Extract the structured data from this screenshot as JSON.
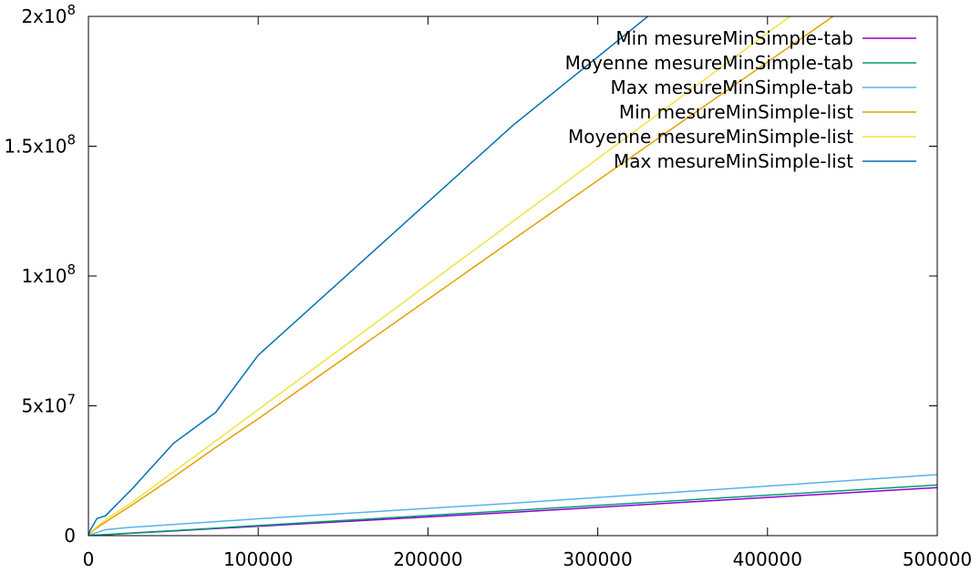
{
  "chart_data": {
    "type": "line",
    "title": "",
    "xlabel": "",
    "ylabel": "",
    "xlim": [
      0,
      500000
    ],
    "ylim": [
      0,
      200000000
    ],
    "grid": false,
    "legend_position": "top-right",
    "x_ticks": [
      {
        "value": 0,
        "label": "0"
      },
      {
        "value": 100000,
        "label": "100000"
      },
      {
        "value": 200000,
        "label": "200000"
      },
      {
        "value": 300000,
        "label": "300000"
      },
      {
        "value": 400000,
        "label": "400000"
      },
      {
        "value": 500000,
        "label": "500000"
      }
    ],
    "y_ticks": [
      {
        "value": 0,
        "base": "0",
        "exp": ""
      },
      {
        "value": 50000000,
        "base": "5x10",
        "exp": "7"
      },
      {
        "value": 100000000,
        "base": "1x10",
        "exp": "8"
      },
      {
        "value": 150000000,
        "base": "1.5x10",
        "exp": "8"
      },
      {
        "value": 200000000,
        "base": "2x10",
        "exp": "8"
      }
    ],
    "series": [
      {
        "name": "Min mesureMinSimple-tab",
        "color": "#9400d3",
        "x": [
          0,
          1000,
          5000,
          10000,
          25000,
          50000,
          75000,
          100000,
          250000,
          500000
        ],
        "y": [
          0,
          40000,
          180000,
          360000,
          900000,
          1800000,
          2700000,
          3600000,
          9000000,
          18500000
        ]
      },
      {
        "name": "Moyenne mesureMinSimple-tab",
        "color": "#009e73",
        "x": [
          0,
          1000,
          5000,
          10000,
          25000,
          50000,
          75000,
          100000,
          250000,
          500000
        ],
        "y": [
          0,
          45000,
          200000,
          400000,
          1000000,
          1950000,
          2900000,
          3900000,
          9700000,
          19500000
        ]
      },
      {
        "name": "Max mesureMinSimple-tab",
        "color": "#56b4e9",
        "x": [
          0,
          1000,
          5000,
          10000,
          25000,
          50000,
          75000,
          100000,
          250000,
          500000
        ],
        "y": [
          0,
          300000,
          1200000,
          2300000,
          3200000,
          4300000,
          5400000,
          6500000,
          12500000,
          23500000
        ]
      },
      {
        "name": "Min mesureMinSimple-list",
        "color": "#e69f00",
        "x": [
          0,
          1000,
          5000,
          10000,
          25000,
          50000,
          75000,
          100000,
          250000,
          500000
        ],
        "y": [
          0,
          1000000,
          3000000,
          5200000,
          11500000,
          22500000,
          34000000,
          45000000,
          114000000,
          228000000
        ]
      },
      {
        "name": "Moyenne mesureMinSimple-list",
        "color": "#f0e442",
        "x": [
          0,
          1000,
          5000,
          10000,
          25000,
          50000,
          75000,
          100000,
          250000,
          500000
        ],
        "y": [
          0,
          1200000,
          3500000,
          6000000,
          12500000,
          24500000,
          36500000,
          48500000,
          121000000,
          242000000
        ]
      },
      {
        "name": "Max mesureMinSimple-list",
        "color": "#0072b2",
        "x": [
          0,
          1000,
          5000,
          10000,
          25000,
          50000,
          75000,
          100000,
          250000,
          500000
        ],
        "y": [
          0,
          2000000,
          6600000,
          7600000,
          17500000,
          35500000,
          47500000,
          69500000,
          158000000,
          290000000
        ]
      }
    ]
  }
}
